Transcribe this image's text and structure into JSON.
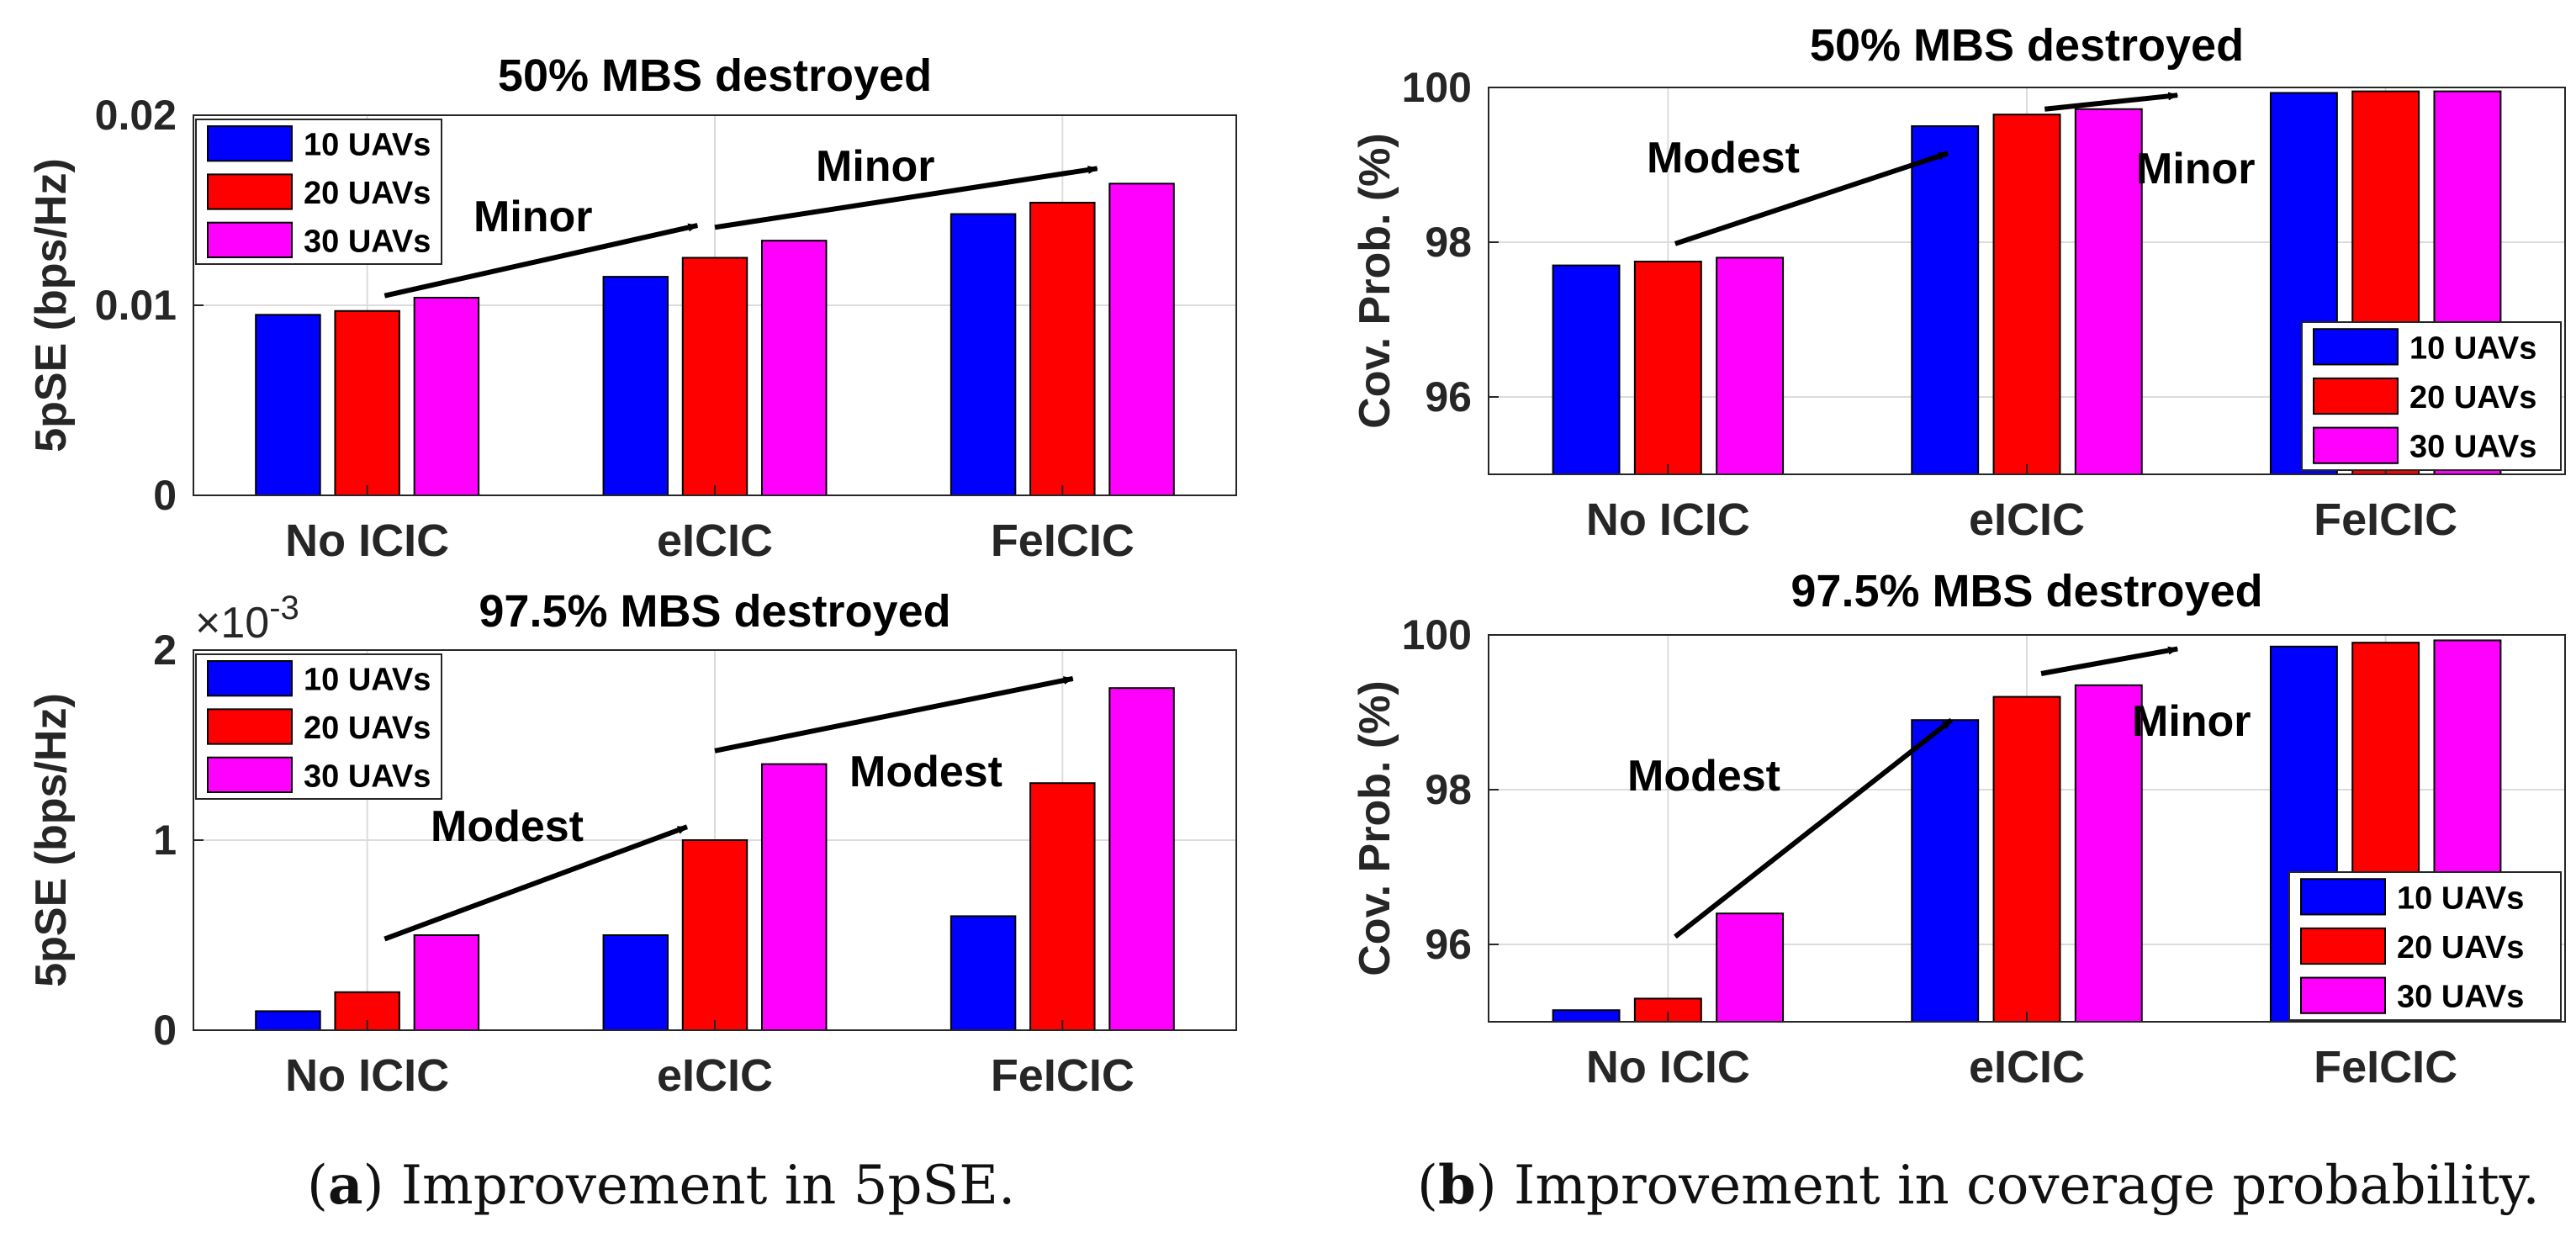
{
  "colors": {
    "series": [
      "#0000ff",
      "#ff0000",
      "#ff00ff"
    ],
    "axis": "#262626",
    "grid": "#dcdcdc"
  },
  "captions": [
    {
      "label": "a",
      "text": ") Improvement in 5pSE."
    },
    {
      "label": "b",
      "text": ") Improvement in coverage probability."
    }
  ],
  "chart_data": [
    {
      "type": "bar",
      "title": "50% MBS destroyed",
      "xlabel": "",
      "ylabel": "5pSE (bps/Hz)",
      "categories": [
        "No ICIC",
        "eICIC",
        "FeICIC"
      ],
      "ylim": [
        0,
        0.02
      ],
      "yticks": [
        0,
        0.01,
        0.02
      ],
      "ytick_labels": [
        "0",
        "0.01",
        "0.02"
      ],
      "exponent_label": "",
      "grid": true,
      "legend_position": "top-left",
      "series": [
        {
          "name": "10 UAVs",
          "values": [
            0.0095,
            0.0115,
            0.0148
          ]
        },
        {
          "name": "20 UAVs",
          "values": [
            0.0097,
            0.0125,
            0.0154
          ]
        },
        {
          "name": "30 UAVs",
          "values": [
            0.0104,
            0.0134,
            0.0164
          ]
        }
      ],
      "annotations": [
        {
          "text": "Minor",
          "from": [
            0.55,
            0.0105
          ],
          "to": [
            1.45,
            0.0142
          ]
        },
        {
          "text": "Minor",
          "from": [
            1.5,
            0.0141
          ],
          "to": [
            2.6,
            0.0172
          ]
        }
      ]
    },
    {
      "type": "bar",
      "title": "97.5% MBS destroyed",
      "xlabel": "",
      "ylabel": "5pSE (bps/Hz)",
      "categories": [
        "No ICIC",
        "eICIC",
        "FeICIC"
      ],
      "ylim": [
        0,
        2
      ],
      "yticks": [
        0,
        1,
        2
      ],
      "ytick_labels": [
        "0",
        "1",
        "2"
      ],
      "exponent_label": "×10",
      "exponent_power": "-3",
      "grid": true,
      "legend_position": "top-left",
      "series": [
        {
          "name": "10 UAVs",
          "values": [
            0.1,
            0.5,
            0.6
          ]
        },
        {
          "name": "20 UAVs",
          "values": [
            0.2,
            1.0,
            1.3
          ]
        },
        {
          "name": "30 UAVs",
          "values": [
            0.5,
            1.4,
            1.8
          ]
        }
      ],
      "annotations": [
        {
          "text": "Modest",
          "from": [
            0.55,
            0.48
          ],
          "to": [
            1.42,
            1.07
          ]
        },
        {
          "text": "Modest",
          "from": [
            1.5,
            1.47
          ],
          "to": [
            2.53,
            1.85
          ]
        }
      ]
    },
    {
      "type": "bar",
      "title": "50% MBS destroyed",
      "xlabel": "",
      "ylabel": "Cov. Prob. (%)",
      "categories": [
        "No ICIC",
        "eICIC",
        "FeICIC"
      ],
      "ylim": [
        95,
        100
      ],
      "yticks": [
        96,
        98,
        100
      ],
      "ytick_labels": [
        "96",
        "98",
        "100"
      ],
      "exponent_label": "",
      "grid": true,
      "legend_position": "bottom-right",
      "series": [
        {
          "name": "10 UAVs",
          "values": [
            97.7,
            99.5,
            99.93
          ]
        },
        {
          "name": "20 UAVs",
          "values": [
            97.75,
            99.65,
            99.95
          ]
        },
        {
          "name": "30 UAVs",
          "values": [
            97.8,
            99.72,
            99.95
          ]
        }
      ],
      "annotations": [
        {
          "text": "Modest",
          "from": [
            0.52,
            97.98
          ],
          "to": [
            1.28,
            99.15
          ]
        },
        {
          "text": "Minor",
          "from": [
            1.55,
            99.72
          ],
          "to": [
            1.92,
            99.9
          ]
        }
      ]
    },
    {
      "type": "bar",
      "title": "97.5% MBS destroyed",
      "xlabel": "",
      "ylabel": "Cov. Prob. (%)",
      "categories": [
        "No ICIC",
        "eICIC",
        "FeICIC"
      ],
      "ylim": [
        95,
        100
      ],
      "yticks": [
        96,
        98,
        100
      ],
      "ytick_labels": [
        "96",
        "98",
        "100"
      ],
      "exponent_label": "",
      "grid": true,
      "legend_position": "bottom-right",
      "series": [
        {
          "name": "10 UAVs",
          "values": [
            95.15,
            98.9,
            99.85
          ]
        },
        {
          "name": "20 UAVs",
          "values": [
            95.3,
            99.2,
            99.9
          ]
        },
        {
          "name": "30 UAVs",
          "values": [
            96.4,
            99.35,
            99.93
          ]
        }
      ],
      "annotations": [
        {
          "text": "Modest",
          "from": [
            0.52,
            96.1
          ],
          "to": [
            1.29,
            98.9
          ]
        },
        {
          "text": "Minor",
          "from": [
            1.54,
            99.5
          ],
          "to": [
            1.92,
            99.82
          ]
        }
      ]
    }
  ]
}
